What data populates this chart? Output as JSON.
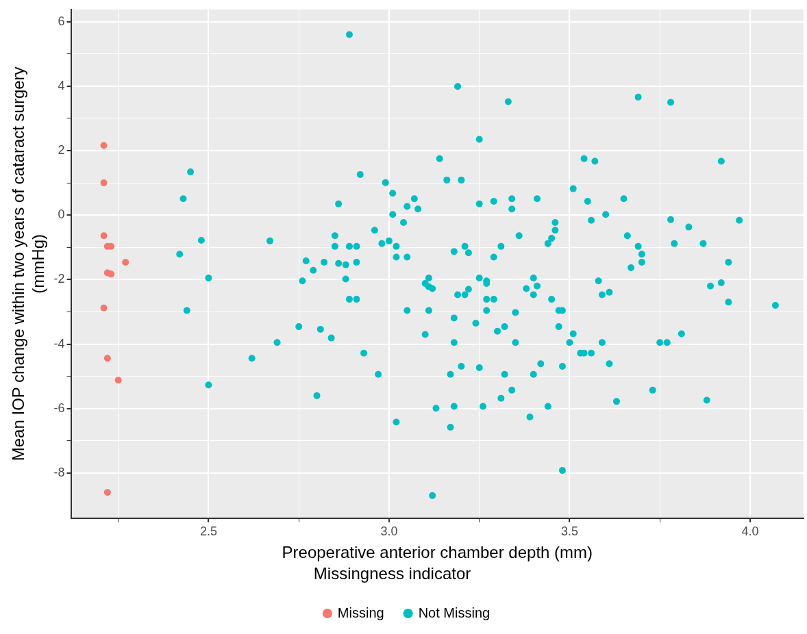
{
  "chart_data": {
    "type": "scatter",
    "xlabel": "Preoperative anterior chamber depth (mm)",
    "ylabel": "Mean IOP change within two years of cataract surgery\n(mmHg)",
    "legend_title": "Missingness indicator",
    "legend": "bottom",
    "grid": true,
    "marker": "circle",
    "xlim": [
      2.119,
      4.148
    ],
    "xticks": [
      {
        "value": 2.25,
        "label": null
      },
      2.5,
      {
        "value": 2.75,
        "label": null
      },
      "3.0",
      {
        "value": 3.25,
        "label": null
      },
      3.5,
      {
        "value": 3.75,
        "label": null
      },
      "4.0"
    ],
    "ylim": [
      -9.4,
      6.38
    ],
    "yticks": [
      -8,
      {
        "value": -7,
        "label": null
      },
      -6,
      {
        "value": -5,
        "label": null
      },
      -4,
      {
        "value": -3,
        "label": null
      },
      -2,
      {
        "value": -1,
        "label": null
      },
      0,
      {
        "value": 1,
        "label": null
      },
      2,
      {
        "value": 3,
        "label": null
      },
      4,
      {
        "value": 5,
        "label": null
      },
      6
    ],
    "series": [
      {
        "name": "Missing",
        "color": "#f8766d",
        "x": [
          2.21,
          2.21,
          2.21,
          2.22,
          2.23,
          2.22,
          2.23,
          2.27,
          2.21,
          2.22,
          2.25,
          2.22
        ],
        "values": [
          2.16,
          1.0,
          -0.64,
          -0.97,
          -0.97,
          -1.79,
          -1.83,
          -1.46,
          -2.88,
          -4.44,
          -5.12,
          -8.6
        ]
      },
      {
        "name": "Not Missing",
        "color": "#00bfc4",
        "x": [
          2.42,
          2.43,
          2.45,
          2.44,
          2.48,
          2.5,
          2.5,
          2.62,
          2.67,
          2.69,
          2.75,
          2.76,
          2.77,
          2.79,
          2.81,
          2.8,
          2.82,
          2.84,
          2.85,
          2.85,
          2.86,
          2.86,
          2.88,
          2.88,
          2.89,
          2.89,
          2.89,
          2.91,
          2.91,
          2.91,
          2.92,
          2.93,
          2.96,
          2.97,
          2.98,
          2.99,
          3.0,
          3.01,
          3.01,
          3.02,
          3.02,
          3.02,
          3.04,
          3.05,
          3.05,
          3.05,
          3.07,
          3.08,
          3.1,
          3.1,
          3.11,
          3.11,
          3.11,
          3.12,
          3.12,
          3.13,
          3.14,
          3.16,
          3.17,
          3.17,
          3.18,
          3.18,
          3.18,
          3.18,
          3.19,
          3.19,
          3.2,
          3.2,
          3.21,
          3.21,
          3.22,
          3.22,
          3.24,
          3.25,
          3.25,
          3.25,
          3.25,
          3.26,
          3.27,
          3.27,
          3.27,
          3.27,
          3.29,
          3.29,
          3.29,
          3.3,
          3.31,
          3.31,
          3.32,
          3.32,
          3.33,
          3.34,
          3.34,
          3.34,
          3.35,
          3.35,
          3.36,
          3.38,
          3.39,
          3.4,
          3.4,
          3.4,
          3.41,
          3.41,
          3.42,
          3.44,
          3.44,
          3.45,
          3.45,
          3.46,
          3.46,
          3.47,
          3.47,
          3.48,
          3.48,
          3.48,
          3.5,
          3.51,
          3.51,
          3.53,
          3.54,
          3.54,
          3.55,
          3.56,
          3.56,
          3.57,
          3.58,
          3.59,
          3.59,
          3.6,
          3.61,
          3.61,
          3.63,
          3.65,
          3.66,
          3.67,
          3.69,
          3.69,
          3.7,
          3.7,
          3.73,
          3.75,
          3.77,
          3.78,
          3.78,
          3.79,
          3.81,
          3.83,
          3.87,
          3.88,
          3.89,
          3.92,
          3.92,
          3.94,
          3.94,
          3.97,
          4.07
        ],
        "values": [
          -1.21,
          0.51,
          1.34,
          -2.96,
          -0.78,
          -1.95,
          -5.27,
          -4.44,
          -0.8,
          -3.95,
          -3.46,
          -2.04,
          -1.42,
          -1.71,
          -3.54,
          -5.6,
          -1.46,
          -3.81,
          -0.64,
          -0.97,
          0.35,
          -1.5,
          -1.54,
          -1.98,
          -0.97,
          -2.61,
          5.6,
          -0.97,
          -1.46,
          -2.61,
          1.26,
          -4.28,
          -0.47,
          -4.94,
          -0.88,
          1.01,
          -0.8,
          0.68,
          0.02,
          -0.97,
          -1.3,
          -6.42,
          -0.23,
          0.27,
          -1.3,
          -2.96,
          0.51,
          0.19,
          -2.12,
          -3.7,
          -1.95,
          -2.22,
          -2.96,
          -2.28,
          -8.7,
          -5.99,
          1.75,
          1.09,
          -4.94,
          -6.58,
          -1.13,
          -3.19,
          -3.95,
          -5.93,
          -2.47,
          3.99,
          1.09,
          -4.69,
          -0.97,
          -2.47,
          -1.17,
          -2.3,
          -3.35,
          2.35,
          0.35,
          -1.95,
          -4.73,
          -5.93,
          -2.04,
          -2.12,
          -2.61,
          -2.96,
          0.43,
          -1.3,
          -2.61,
          -3.6,
          -0.97,
          -5.68,
          -4.94,
          -3.46,
          3.52,
          0.51,
          0.19,
          -5.43,
          -3.02,
          -3.95,
          -0.64,
          -2.28,
          -6.26,
          -1.95,
          -2.47,
          -4.94,
          -2.2,
          0.51,
          -4.61,
          -0.88,
          -5.93,
          -0.72,
          -2.61,
          -0.23,
          -0.47,
          -3.46,
          -2.96,
          -2.96,
          -4.69,
          -7.92,
          -3.95,
          -3.68,
          0.82,
          -4.28,
          -4.28,
          1.75,
          0.43,
          -0.16,
          -4.28,
          1.67,
          -2.04,
          -2.47,
          -3.95,
          0.02,
          -2.39,
          -4.61,
          -5.78,
          0.51,
          -0.64,
          -1.63,
          -0.97,
          3.66,
          -1.21,
          -1.46,
          -5.43,
          -3.95,
          -3.95,
          -0.14,
          3.5,
          -0.88,
          -3.68,
          -0.37,
          -0.88,
          -5.74,
          -2.2,
          1.67,
          -2.1,
          -1.46,
          -2.7,
          -0.16,
          -2.8
        ]
      }
    ]
  }
}
